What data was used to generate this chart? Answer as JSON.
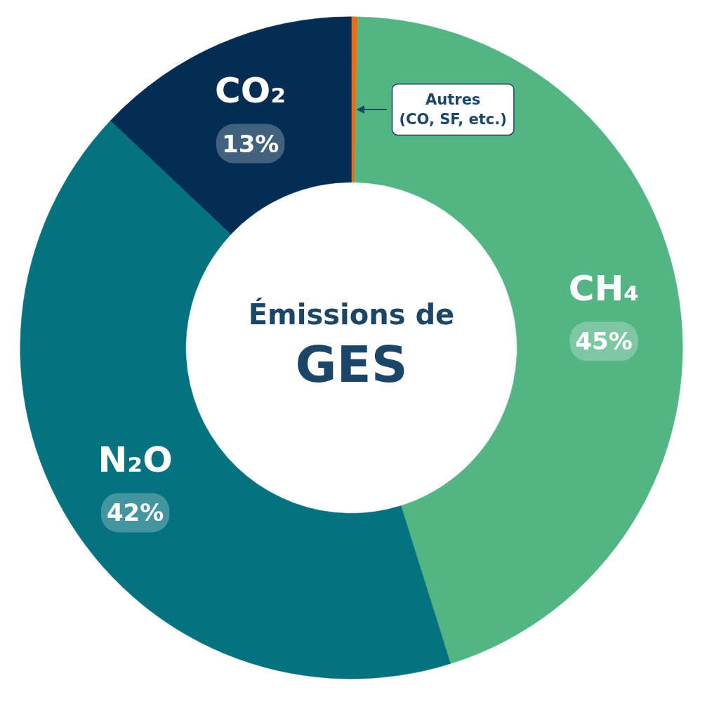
{
  "chart_data": {
    "type": "donut",
    "title": "Émissions de GES",
    "categories": [
      "Autres (CO, SF, etc.)",
      "CH₄",
      "N₂O",
      "CO₂"
    ],
    "values": [
      0.3,
      45,
      42,
      13
    ],
    "colors": [
      "#f26b0f",
      "#52b583",
      "#05727f",
      "#032d52"
    ],
    "value_labels": [
      null,
      "45%",
      "42%",
      "13%"
    ]
  }
}
